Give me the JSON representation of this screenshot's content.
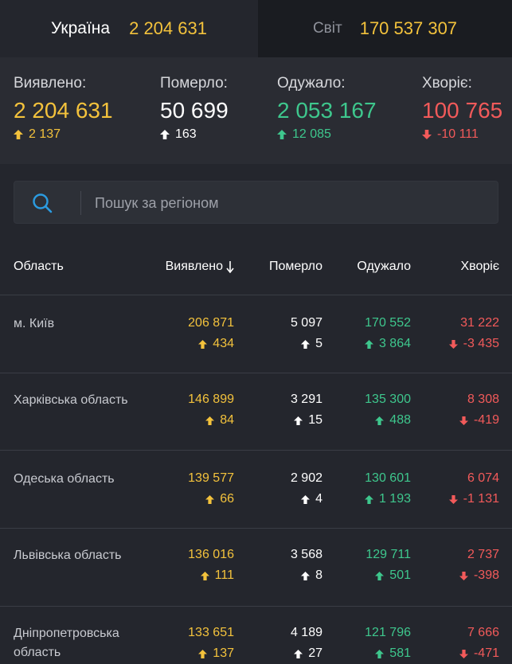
{
  "tabs": {
    "ukraine": {
      "label": "Україна",
      "value": "2 204 631"
    },
    "world": {
      "label": "Світ",
      "value": "170 537 307"
    }
  },
  "summary": {
    "confirmed": {
      "label": "Виявлено:",
      "value": "2 204 631",
      "delta": "2 137"
    },
    "deaths": {
      "label": "Померло:",
      "value": "50 699",
      "delta": "163"
    },
    "recovered": {
      "label": "Одужало:",
      "value": "2 053 167",
      "delta": "12 085"
    },
    "sick": {
      "label": "Хворіє:",
      "value": "100 765",
      "delta": "-10 111"
    }
  },
  "search": {
    "placeholder": "Пошук за регіоном"
  },
  "table": {
    "headers": {
      "region": "Область",
      "confirmed": "Виявлено",
      "deaths": "Померло",
      "recovered": "Одужало",
      "sick": "Хворіє"
    },
    "rows": [
      {
        "name": "м. Київ",
        "confirmed": "206 871",
        "confirmed_delta": "434",
        "deaths": "5 097",
        "deaths_delta": "5",
        "recovered": "170 552",
        "recovered_delta": "3 864",
        "sick": "31 222",
        "sick_delta": "-3 435"
      },
      {
        "name": "Харківська область",
        "confirmed": "146 899",
        "confirmed_delta": "84",
        "deaths": "3 291",
        "deaths_delta": "15",
        "recovered": "135 300",
        "recovered_delta": "488",
        "sick": "8 308",
        "sick_delta": "-419"
      },
      {
        "name": "Одеська область",
        "confirmed": "139 577",
        "confirmed_delta": "66",
        "deaths": "2 902",
        "deaths_delta": "4",
        "recovered": "130 601",
        "recovered_delta": "1 193",
        "sick": "6 074",
        "sick_delta": "-1 131"
      },
      {
        "name": "Львівська область",
        "confirmed": "136 016",
        "confirmed_delta": "111",
        "deaths": "3 568",
        "deaths_delta": "8",
        "recovered": "129 711",
        "recovered_delta": "501",
        "sick": "2 737",
        "sick_delta": "-398"
      },
      {
        "name": "Дніпропетровська область",
        "confirmed": "133 651",
        "confirmed_delta": "137",
        "deaths": "4 189",
        "deaths_delta": "27",
        "recovered": "121 796",
        "recovered_delta": "581",
        "sick": "7 666",
        "sick_delta": "-471"
      }
    ]
  },
  "colors": {
    "confirmed": "#f3c23c",
    "deaths": "#ffffff",
    "recovered": "#3ec78d",
    "sick": "#f25a5a",
    "search_icon": "#2b9be0"
  },
  "icons": {
    "search": "search-icon",
    "sort": "sort-down-arrow-icon",
    "up": "arrow-up-icon",
    "down": "arrow-down-icon"
  }
}
